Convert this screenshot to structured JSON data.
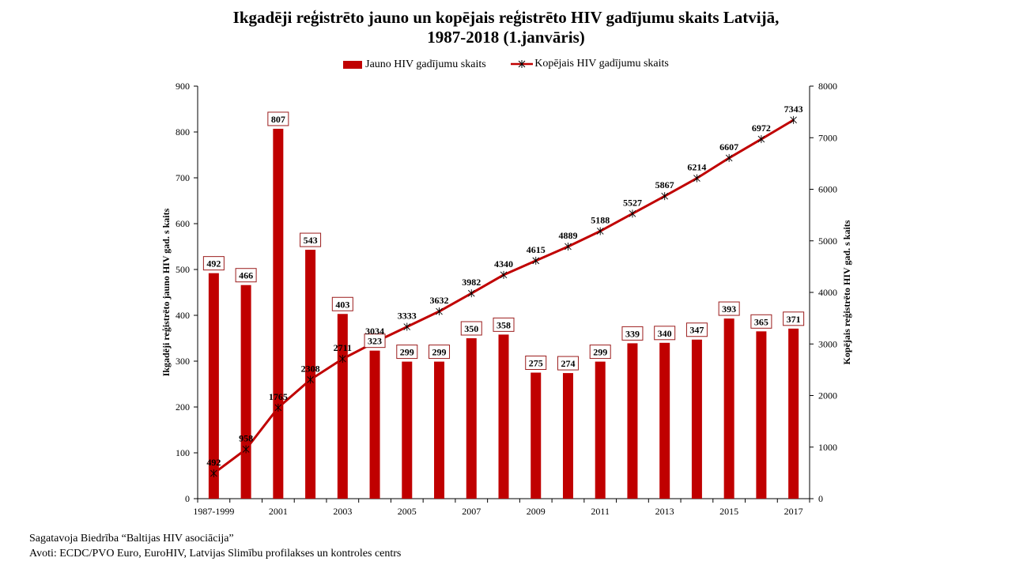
{
  "chart_data": {
    "type": "bar+line",
    "title_line1": "Ikgadēji reģistrēto jauno un kopējais reģistrēto HIV gadījumu skaits Latvijā,",
    "title_line2": "1987-2018 (1.janvāris)",
    "categories": [
      "1987-1999",
      "2000",
      "2001",
      "2002",
      "2003",
      "2004",
      "2005",
      "2006",
      "2007",
      "2008",
      "2009",
      "2010",
      "2011",
      "2012",
      "2013",
      "2014",
      "2015",
      "2016",
      "2017"
    ],
    "x_tick_labels": [
      "1987-1999",
      "2001",
      "2003",
      "2005",
      "2007",
      "2009",
      "2011",
      "2013",
      "2015",
      "2017"
    ],
    "series": [
      {
        "name": "Jauno HIV gadījumu skaits",
        "type": "bar",
        "axis": "left",
        "color": "#c00000",
        "values": [
          492,
          466,
          807,
          543,
          403,
          323,
          299,
          299,
          350,
          358,
          275,
          274,
          299,
          339,
          340,
          347,
          393,
          365,
          371
        ]
      },
      {
        "name": "Kopējais HIV gadījumu skaits",
        "type": "line",
        "axis": "right",
        "color": "#c00000",
        "marker": "asterisk",
        "values": [
          492,
          958,
          1765,
          2308,
          2711,
          3034,
          3333,
          3632,
          3982,
          4340,
          4615,
          4889,
          5188,
          5527,
          5867,
          6214,
          6607,
          6972,
          7343
        ]
      }
    ],
    "y_left": {
      "label": "Ikgadēji  reģistrēto jauno HIV  gad.  s kaits",
      "range": [
        0,
        900
      ],
      "ticks": [
        0,
        100,
        200,
        300,
        400,
        500,
        600,
        700,
        800,
        900
      ]
    },
    "y_right": {
      "label": "Kopējais  reģistrēto HIV  gad.  s kaits",
      "range": [
        0,
        8000
      ],
      "ticks": [
        0,
        1000,
        2000,
        3000,
        4000,
        5000,
        6000,
        7000,
        8000
      ]
    },
    "legend_position": "top-center",
    "grid": false
  },
  "footer": {
    "line1": "Sagatavoja Biedrība  “Baltijas  HIV asociācija”",
    "line2": "Avoti:  ECDC/PVO Euro, EuroHIV, Latvijas  Slimību  profilakses  un kontroles  centrs"
  }
}
